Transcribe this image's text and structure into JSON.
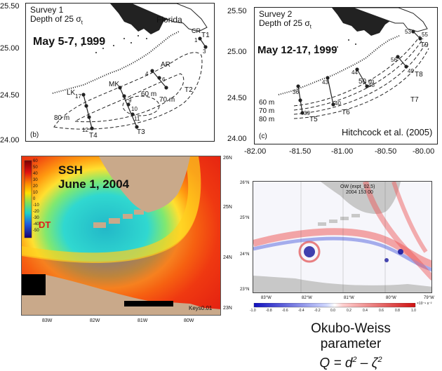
{
  "survey1": {
    "title_line1": "Survey 1",
    "title_line2": "Depth of 25 σ",
    "sub": "t",
    "state": "Florida",
    "dates": "May 5-7, 1999",
    "panel_tag": "(b)",
    "y_ticks": [
      "25.50",
      "25.00",
      "24.50",
      "24.00"
    ],
    "transects": [
      "T1",
      "T2",
      "T3",
      "T4"
    ],
    "regions": [
      "CR",
      "AR",
      "MK",
      "LK"
    ],
    "depths": [
      "60 m",
      "70 m",
      "80 m"
    ],
    "stations": [
      "1",
      "3",
      "4",
      "6",
      "9",
      "10",
      "11",
      "12",
      "17"
    ]
  },
  "survey2": {
    "title_line1": "Survey 2",
    "title_line2": "Depth of 25 σ",
    "sub": "t",
    "dates": "May 12-17, 1999",
    "panel_tag": "(c)",
    "y_ticks": [
      "25.50",
      "25.00",
      "24.50",
      "24.00"
    ],
    "x_ticks": [
      "-82.00",
      "-81.50",
      "-81.00",
      "-80.50",
      "-80.00"
    ],
    "transects": [
      "T9",
      "T8",
      "T7",
      "T6",
      "T5"
    ],
    "depths": [
      "50 m",
      "60 m",
      "70 m",
      "80 m"
    ],
    "stations": [
      "53",
      "55",
      "56",
      "44",
      "49",
      "43",
      "48",
      "36",
      "40",
      "39"
    ],
    "citation": "Hitchcock et al. (2005)"
  },
  "ssh": {
    "title": "SSH",
    "date": "June 1, 2004",
    "label": "DT",
    "colorbar_ticks": [
      "60",
      "50",
      "40",
      "30",
      "20",
      "10",
      "0",
      "-10",
      "-20",
      "-30",
      "-40",
      "-50"
    ],
    "lat_ticks": [
      "26N",
      "25N",
      "24N",
      "23N"
    ],
    "lon_ticks": [
      "83W",
      "82W",
      "81W",
      "80W"
    ],
    "keys": "Keys0.01"
  },
  "ow": {
    "title": "OW (expt_02.5)",
    "date": "2004 153 00",
    "lat_ticks": [
      "26°N",
      "25°N",
      "24°N",
      "23°N"
    ],
    "lon_ticks": [
      "83°W",
      "82°W",
      "81°W",
      "80°W",
      "79°W"
    ],
    "colorbar_ticks": [
      "-1.0",
      "-0.8",
      "-0.6",
      "-0.4",
      "-0.2",
      "0.0",
      "0.2",
      "0.4",
      "0.6",
      "0.8",
      "1.0"
    ],
    "colorbar_unit": "×10⁻⁹ s⁻²"
  },
  "caption": {
    "line1": "Okubo-Weiss",
    "line2": "parameter",
    "formula_q": "Q = d",
    "formula_exp1": "2",
    "formula_mid": " – ζ",
    "formula_exp2": "2"
  },
  "colors": {
    "land": "#c9a98a",
    "land_gray": "#c8c8c8",
    "red": "#e11d1d",
    "cyan": "#28d0d0"
  }
}
